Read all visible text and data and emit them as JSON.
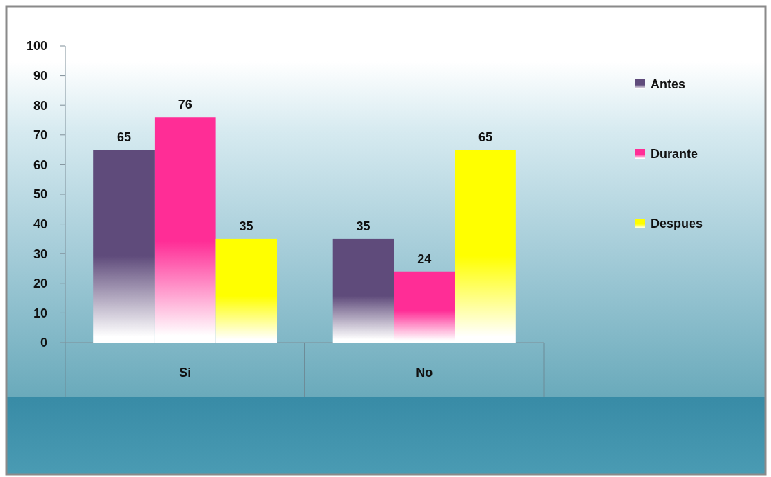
{
  "chart_data": {
    "type": "bar",
    "categories": [
      "Si",
      "No"
    ],
    "series": [
      {
        "name": "Antes",
        "color": "#5f4b7b",
        "values": [
          65,
          35
        ]
      },
      {
        "name": "Durante",
        "color": "#ff2d96",
        "values": [
          76,
          24
        ]
      },
      {
        "name": "Despues",
        "color": "#ffff00",
        "values": [
          35,
          65
        ]
      }
    ],
    "ylim": [
      0,
      100
    ],
    "yticks": [
      0,
      10,
      20,
      30,
      40,
      50,
      60,
      70,
      80,
      90,
      100
    ],
    "data_labels": true,
    "legend": "right"
  }
}
